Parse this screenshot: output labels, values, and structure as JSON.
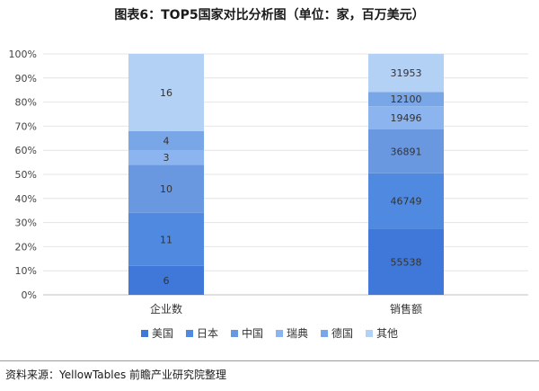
{
  "title": "图表6：TOP5国家对比分析图（单位：家，百万美元）",
  "source": "资料来源：YellowTables 前瞻产业研究院整理",
  "chart_data": {
    "type": "bar",
    "stacked": "percent",
    "categories": [
      "企业数",
      "销售额"
    ],
    "series": [
      {
        "name": "美国",
        "color": "#3f78d8",
        "values": [
          6,
          55538
        ]
      },
      {
        "name": "日本",
        "color": "#4f8ae0",
        "values": [
          11,
          46749
        ]
      },
      {
        "name": "中国",
        "color": "#6a98e0",
        "values": [
          10,
          36891
        ]
      },
      {
        "name": "瑞典",
        "color": "#8cb4ee",
        "values": [
          3,
          19496
        ]
      },
      {
        "name": "德国",
        "color": "#79a6e6",
        "values": [
          4,
          12100
        ]
      },
      {
        "name": "其他",
        "color": "#b3d0f5",
        "values": [
          16,
          31953
        ]
      }
    ],
    "ytick_labels": [
      "0%",
      "10%",
      "20%",
      "30%",
      "40%",
      "50%",
      "60%",
      "70%",
      "80%",
      "90%",
      "100%"
    ],
    "ylim": [
      0,
      100
    ],
    "grid": true,
    "legend": "bottom"
  }
}
